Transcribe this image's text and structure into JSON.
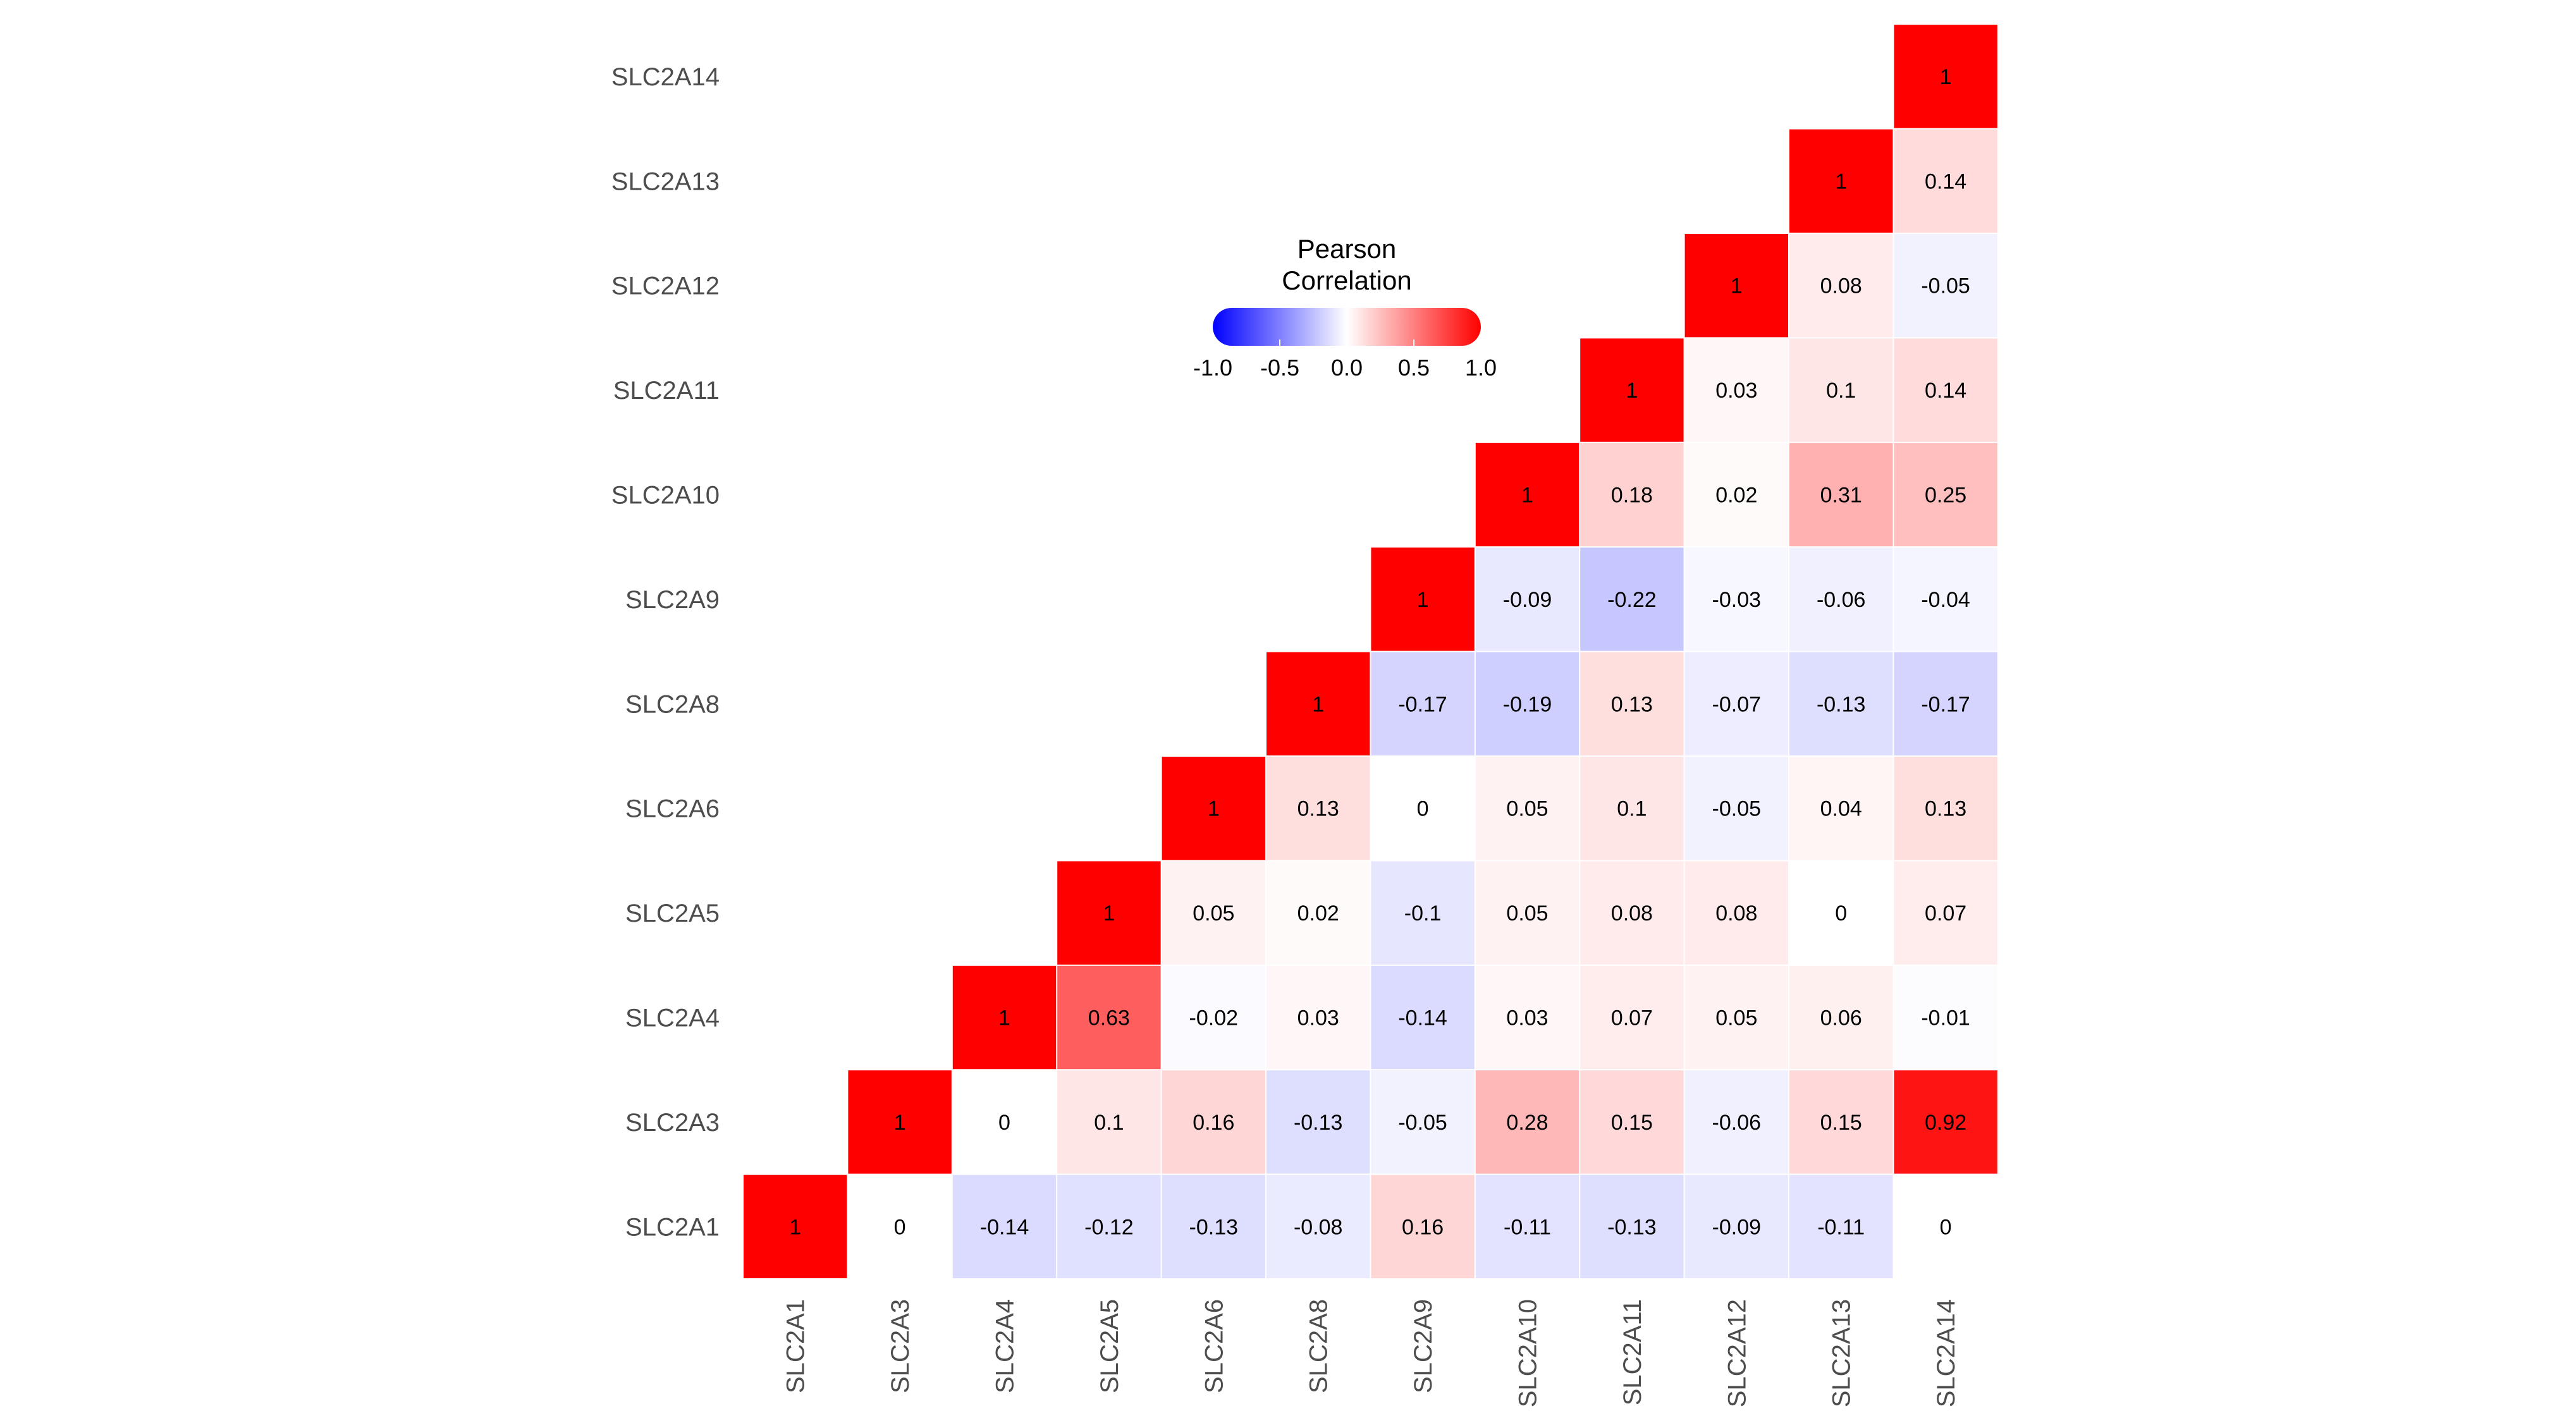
{
  "chart_data": {
    "type": "heatmap",
    "title": "",
    "xlabel": "",
    "ylabel": "",
    "genes": [
      "SLC2A1",
      "SLC2A3",
      "SLC2A4",
      "SLC2A5",
      "SLC2A6",
      "SLC2A8",
      "SLC2A9",
      "SLC2A10",
      "SLC2A11",
      "SLC2A12",
      "SLC2A13",
      "SLC2A14"
    ],
    "matrix": [
      [
        "1",
        "0",
        "-0.14",
        "-0.12",
        "-0.13",
        "-0.08",
        "0.16",
        "-0.11",
        "-0.13",
        "-0.09",
        "-0.11",
        "0"
      ],
      [
        null,
        "1",
        "0",
        "0.1",
        "0.16",
        "-0.13",
        "-0.05",
        "0.28",
        "0.15",
        "-0.06",
        "0.15",
        "0.92"
      ],
      [
        null,
        null,
        "1",
        "0.63",
        "-0.02",
        "0.03",
        "-0.14",
        "0.03",
        "0.07",
        "0.05",
        "0.06",
        "-0.01"
      ],
      [
        null,
        null,
        null,
        "1",
        "0.05",
        "0.02",
        "-0.1",
        "0.05",
        "0.08",
        "0.08",
        "0",
        "0.07"
      ],
      [
        null,
        null,
        null,
        null,
        "1",
        "0.13",
        "0",
        "0.05",
        "0.1",
        "-0.05",
        "0.04",
        "0.13"
      ],
      [
        null,
        null,
        null,
        null,
        null,
        "1",
        "-0.17",
        "-0.19",
        "0.13",
        "-0.07",
        "-0.13",
        "-0.17"
      ],
      [
        null,
        null,
        null,
        null,
        null,
        null,
        "1",
        "-0.09",
        "-0.22",
        "-0.03",
        "-0.06",
        "-0.04"
      ],
      [
        null,
        null,
        null,
        null,
        null,
        null,
        null,
        "1",
        "0.18",
        "0.02",
        "0.31",
        "0.25"
      ],
      [
        null,
        null,
        null,
        null,
        null,
        null,
        null,
        null,
        "1",
        "0.03",
        "0.1",
        "0.14"
      ],
      [
        null,
        null,
        null,
        null,
        null,
        null,
        null,
        null,
        null,
        "1",
        "0.08",
        "-0.05"
      ],
      [
        null,
        null,
        null,
        null,
        null,
        null,
        null,
        null,
        null,
        null,
        "1",
        "0.14"
      ],
      [
        null,
        null,
        null,
        null,
        null,
        null,
        null,
        null,
        null,
        null,
        null,
        "1"
      ]
    ],
    "legend": {
      "title_lines": [
        "Pearson",
        "Correlation"
      ],
      "ticks": [
        "-1.0",
        "-0.5",
        "0.0",
        "0.5",
        "1.0"
      ],
      "range": [
        -1,
        1
      ],
      "placement": "top-center"
    },
    "colors": {
      "low": "#0000FF",
      "mid": "#FFFFFF",
      "high": "#FF0000"
    }
  }
}
